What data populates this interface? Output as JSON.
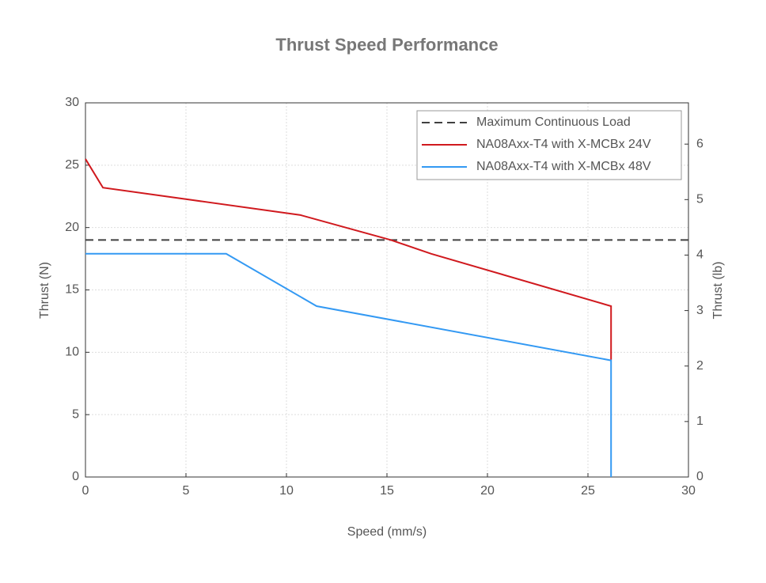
{
  "chart_data": {
    "type": "line",
    "title": "Thrust Speed Performance",
    "xlabel": "Speed (mm/s)",
    "ylabel": "Thrust (N)",
    "y2label": "Thrust (lb)",
    "xlim": [
      0,
      30
    ],
    "xticks": [
      0,
      5,
      10,
      15,
      20,
      25,
      30
    ],
    "ylim": [
      0,
      30
    ],
    "yticks": [
      0,
      5,
      10,
      15,
      20,
      25,
      30
    ],
    "y2lim": [
      0,
      6.744
    ],
    "y2ticks": [
      0,
      1,
      2,
      3,
      4,
      5,
      6
    ],
    "grid": true,
    "legend": "upper right",
    "series": [
      {
        "name": "Maximum Continuous Load",
        "color": "#404040",
        "linestyle": "dashed",
        "x": [
          0,
          30
        ],
        "values": [
          19,
          19
        ]
      },
      {
        "name": "NA08Axx-T4 with X-MCBx 24V",
        "color": "#d0191e",
        "linestyle": "solid",
        "x": [
          0,
          0.87,
          10.7,
          15.2,
          17.2,
          26.15,
          26.15
        ],
        "values": [
          25.5,
          23.2,
          21.0,
          19.0,
          17.9,
          13.7,
          9.4
        ]
      },
      {
        "name": "NA08Axx-T4 with X-MCBx 48V",
        "color": "#3399f3",
        "linestyle": "solid",
        "x": [
          0,
          7.0,
          11.5,
          26.15,
          26.15
        ],
        "values": [
          17.9,
          17.9,
          13.7,
          9.35,
          0
        ]
      }
    ]
  }
}
